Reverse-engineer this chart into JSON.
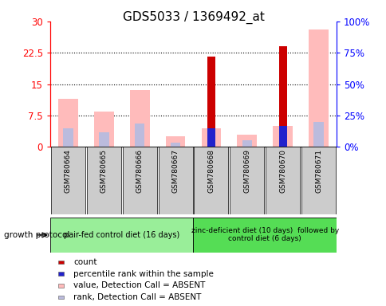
{
  "title": "GDS5033 / 1369492_at",
  "samples": [
    "GSM780664",
    "GSM780665",
    "GSM780666",
    "GSM780667",
    "GSM780668",
    "GSM780669",
    "GSM780670",
    "GSM780671"
  ],
  "count_values": [
    0,
    0,
    0,
    0,
    21.5,
    0,
    24.0,
    0
  ],
  "percentile_rank": [
    0,
    0,
    0,
    0,
    4.5,
    0,
    5.0,
    0
  ],
  "absent_value": [
    11.5,
    8.5,
    13.5,
    2.5,
    4.5,
    3.0,
    5.0,
    28.0
  ],
  "absent_rank": [
    4.5,
    3.5,
    5.5,
    1.0,
    0,
    1.5,
    0,
    6.0
  ],
  "left_ylim": [
    0,
    30
  ],
  "right_ylim": [
    0,
    100
  ],
  "left_yticks": [
    0,
    7.5,
    15,
    22.5,
    30
  ],
  "right_yticks": [
    0,
    25,
    50,
    75,
    100
  ],
  "left_ytick_labels": [
    "0",
    "7.5",
    "15",
    "22.5",
    "30"
  ],
  "right_ytick_labels": [
    "0%",
    "25%",
    "50%",
    "75%",
    "100%"
  ],
  "group1_label": "pair-fed control diet (16 days)",
  "group2_label": "zinc-deficient diet (10 days)  followed by\ncontrol diet (6 days)",
  "group1_color": "#99ee99",
  "group2_color": "#55dd55",
  "group_protocol_label": "growth protocol",
  "sample_bg_color": "#cccccc",
  "absent_value_color": "#ffbbbb",
  "absent_rank_color": "#bbbbdd",
  "count_color": "#cc0000",
  "prank_color": "#2222cc",
  "legend_count_color": "#cc0000",
  "legend_prank_color": "#2222cc",
  "legend_absent_value_color": "#ffbbbb",
  "legend_absent_rank_color": "#bbbbdd"
}
